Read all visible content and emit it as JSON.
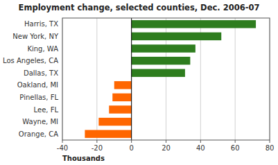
{
  "chart_data": {
    "type": "bar",
    "orientation": "horizontal",
    "title": "Employment change, selected counties, Dec. 2006-07",
    "xlabel": "Thousands",
    "categories": [
      "Orange, CA",
      "Wayne, MI",
      "Lee, FL",
      "Pinellas, FL",
      "Oakland, MI",
      "Dallas, TX",
      "Los Angeles, CA",
      "King, WA",
      "New York, NY",
      "Harris, TX"
    ],
    "values": [
      -27,
      -19,
      -13,
      -11,
      -10,
      31,
      34,
      37,
      52,
      72
    ],
    "colors": [
      "#ff6600",
      "#ff6600",
      "#ff6600",
      "#ff6600",
      "#ff6600",
      "#2e7d1e",
      "#2e7d1e",
      "#2e7d1e",
      "#2e7d1e",
      "#2e7d1e"
    ],
    "xlim": [
      -40,
      80
    ],
    "xticks": [
      -40,
      -20,
      0,
      20,
      40,
      60,
      80
    ],
    "grid": true
  }
}
